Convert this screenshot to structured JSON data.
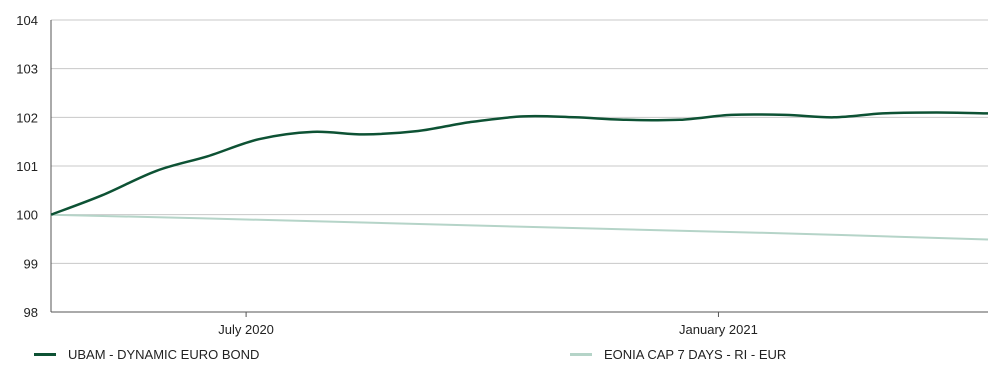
{
  "chart_data": {
    "type": "line",
    "title": "",
    "xlabel": "",
    "ylabel": "",
    "ylim": [
      98,
      104
    ],
    "yticks": [
      98,
      99,
      100,
      101,
      102,
      103,
      104
    ],
    "xlim": [
      "2020-04-30",
      "2021-04-30"
    ],
    "xticks": [
      {
        "date": "2020-07-15",
        "label": "July 2020"
      },
      {
        "date": "2021-01-15",
        "label": "January 2021"
      }
    ],
    "grid": "horizontal",
    "legend": "bottom",
    "series": [
      {
        "name": "UBAM - DYNAMIC EURO BOND",
        "color": "#0d5234",
        "x": [
          "2020-04-30",
          "2020-05-20",
          "2020-06-10",
          "2020-06-30",
          "2020-07-20",
          "2020-08-10",
          "2020-08-30",
          "2020-09-20",
          "2020-10-10",
          "2020-10-31",
          "2020-11-20",
          "2020-12-10",
          "2020-12-31",
          "2021-01-20",
          "2021-02-10",
          "2021-03-01",
          "2021-03-20",
          "2021-04-10",
          "2021-04-30"
        ],
        "y": [
          100.0,
          100.4,
          100.9,
          101.2,
          101.55,
          101.7,
          101.65,
          101.72,
          101.9,
          102.02,
          102.0,
          101.95,
          101.95,
          102.05,
          102.05,
          102.0,
          102.08,
          102.1,
          102.08
        ]
      },
      {
        "name": "EONIA CAP 7 DAYS - RI - EUR",
        "color": "#b5d4c8",
        "x": [
          "2020-04-30",
          "2020-07-31",
          "2020-10-31",
          "2021-01-31",
          "2021-04-30"
        ],
        "y": [
          100.0,
          99.88,
          99.75,
          99.63,
          99.49
        ]
      }
    ]
  }
}
